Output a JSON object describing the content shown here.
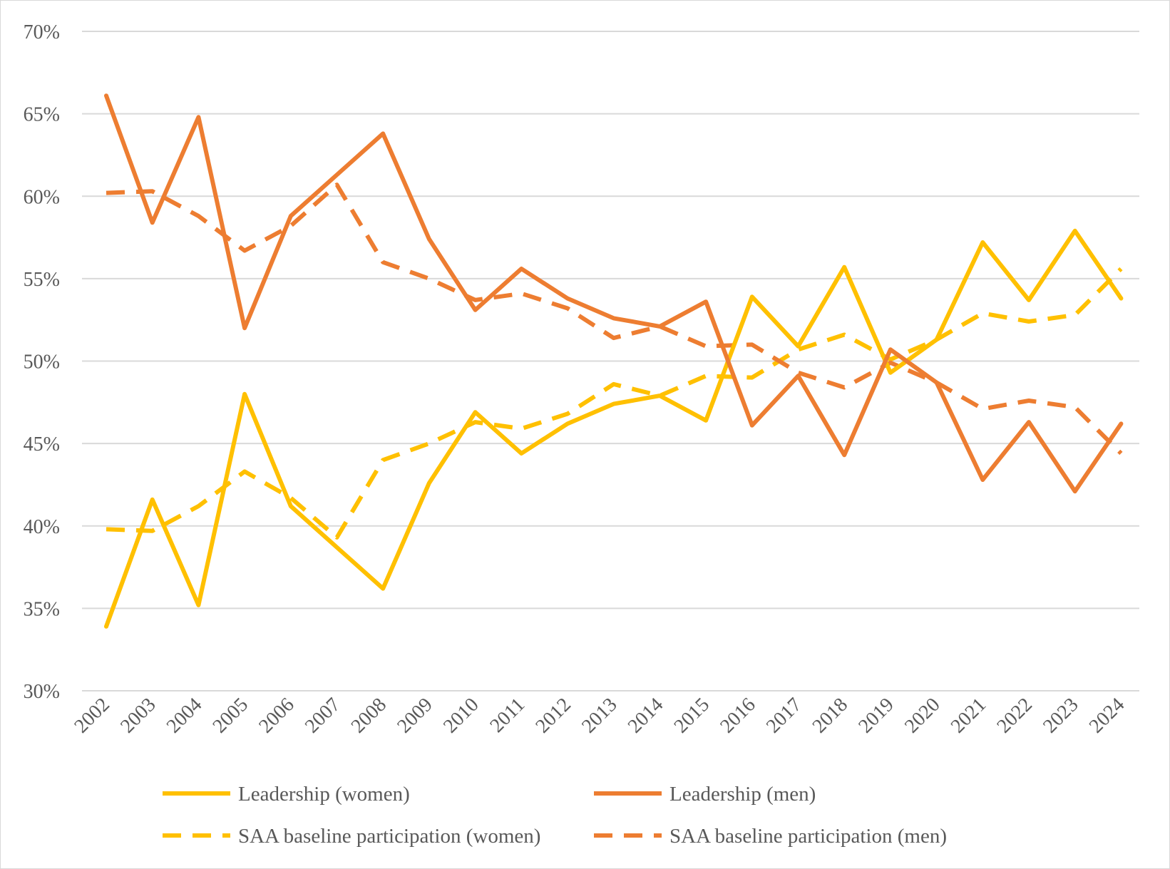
{
  "chart_data": {
    "type": "line",
    "title": "",
    "xlabel": "",
    "ylabel": "",
    "ylim": [
      30,
      70
    ],
    "yticks": [
      30,
      35,
      40,
      45,
      50,
      55,
      60,
      65,
      70
    ],
    "ytick_labels": [
      "30%",
      "35%",
      "40%",
      "45%",
      "50%",
      "55%",
      "60%",
      "65%",
      "70%"
    ],
    "x": [
      "2002",
      "2003",
      "2004",
      "2005",
      "2006",
      "2007",
      "2008",
      "2009",
      "2010",
      "2011",
      "2012",
      "2013",
      "2014",
      "2015",
      "2016",
      "2017",
      "2018",
      "2019",
      "2020",
      "2021",
      "2022",
      "2023",
      "2024"
    ],
    "grid": true,
    "legend_position": "bottom",
    "series": [
      {
        "name": "Leadership (women)",
        "color": "#FFC000",
        "dash": "solid",
        "values": [
          33.9,
          41.6,
          35.2,
          48.0,
          41.2,
          38.7,
          36.2,
          42.6,
          46.9,
          44.4,
          46.2,
          47.4,
          47.9,
          46.4,
          53.9,
          50.9,
          55.7,
          49.3,
          51.3,
          57.2,
          53.7,
          57.9,
          53.8
        ]
      },
      {
        "name": "Leadership (men)",
        "color": "#ED7D31",
        "dash": "solid",
        "values": [
          66.1,
          58.4,
          64.8,
          52.0,
          58.8,
          61.3,
          63.8,
          57.4,
          53.1,
          55.6,
          53.8,
          52.6,
          52.1,
          53.6,
          46.1,
          49.1,
          44.3,
          50.7,
          48.7,
          42.8,
          46.3,
          42.1,
          46.2
        ]
      },
      {
        "name": "SAA baseline participation (women)",
        "color": "#FFC000",
        "dash": "dashed",
        "values": [
          39.8,
          39.7,
          41.2,
          43.3,
          41.7,
          39.3,
          44.0,
          45.0,
          46.3,
          45.9,
          46.8,
          48.6,
          47.9,
          49.1,
          49.0,
          50.7,
          51.6,
          50.1,
          51.3,
          52.9,
          52.4,
          52.8,
          55.6
        ]
      },
      {
        "name": "SAA baseline participation (men)",
        "color": "#ED7D31",
        "dash": "dashed",
        "values": [
          60.2,
          60.3,
          58.8,
          56.7,
          58.2,
          60.7,
          56.0,
          55.0,
          53.7,
          54.1,
          53.2,
          51.4,
          52.1,
          50.9,
          51.0,
          49.3,
          48.4,
          49.9,
          48.7,
          47.1,
          47.6,
          47.2,
          44.4
        ]
      }
    ]
  }
}
